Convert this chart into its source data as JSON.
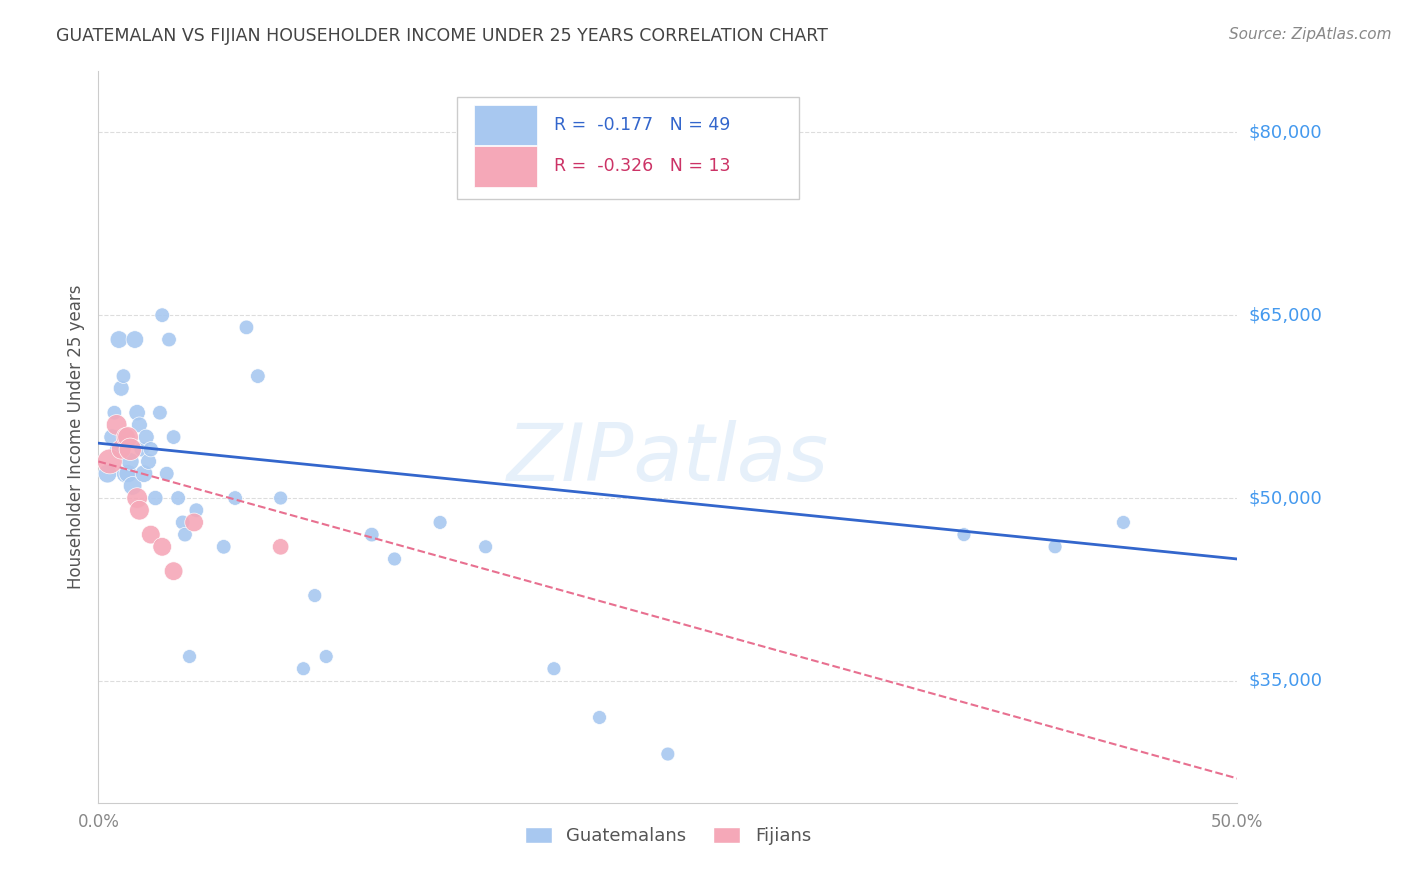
{
  "title": "GUATEMALAN VS FIJIAN HOUSEHOLDER INCOME UNDER 25 YEARS CORRELATION CHART",
  "source": "Source: ZipAtlas.com",
  "ylabel": "Householder Income Under 25 years",
  "xlim": [
    0.0,
    0.5
  ],
  "ylim": [
    25000,
    85000
  ],
  "yticks": [
    35000,
    50000,
    65000,
    80000
  ],
  "ytick_labels": [
    "$35,000",
    "$50,000",
    "$65,000",
    "$80,000"
  ],
  "guatemalan_color": "#a8c8f0",
  "fijian_color": "#f5a8b8",
  "trend_guatemalan_color": "#3366cc",
  "trend_fijian_color": "#e87090",
  "watermark": "ZIPatlas",
  "guatemalan_x": [
    0.004,
    0.006,
    0.007,
    0.008,
    0.009,
    0.01,
    0.011,
    0.012,
    0.013,
    0.014,
    0.015,
    0.016,
    0.017,
    0.018,
    0.019,
    0.02,
    0.021,
    0.022,
    0.023,
    0.025,
    0.027,
    0.028,
    0.03,
    0.031,
    0.033,
    0.035,
    0.037,
    0.038,
    0.04,
    0.043,
    0.055,
    0.06,
    0.065,
    0.07,
    0.08,
    0.09,
    0.095,
    0.1,
    0.12,
    0.13,
    0.15,
    0.17,
    0.2,
    0.22,
    0.25,
    0.38,
    0.42,
    0.45
  ],
  "guatemalan_y": [
    52000,
    55000,
    57000,
    54000,
    63000,
    59000,
    60000,
    52000,
    52000,
    53000,
    51000,
    63000,
    57000,
    56000,
    54000,
    52000,
    55000,
    53000,
    54000,
    50000,
    57000,
    65000,
    52000,
    63000,
    55000,
    50000,
    48000,
    47000,
    37000,
    49000,
    46000,
    50000,
    64000,
    60000,
    50000,
    36000,
    42000,
    37000,
    47000,
    45000,
    48000,
    46000,
    36000,
    32000,
    29000,
    47000,
    46000,
    48000
  ],
  "guatemalan_sizes": [
    180,
    140,
    110,
    100,
    160,
    130,
    110,
    180,
    170,
    160,
    180,
    160,
    140,
    130,
    120,
    160,
    130,
    130,
    120,
    120,
    110,
    110,
    110,
    110,
    110,
    110,
    110,
    110,
    100,
    110,
    110,
    110,
    110,
    110,
    100,
    100,
    100,
    100,
    110,
    100,
    100,
    100,
    100,
    100,
    100,
    100,
    100,
    100
  ],
  "fijian_x": [
    0.005,
    0.008,
    0.01,
    0.012,
    0.013,
    0.014,
    0.017,
    0.018,
    0.023,
    0.028,
    0.033,
    0.042,
    0.08
  ],
  "fijian_y": [
    53000,
    56000,
    54000,
    55000,
    55000,
    54000,
    50000,
    49000,
    47000,
    46000,
    44000,
    48000,
    46000
  ],
  "fijian_sizes": [
    320,
    220,
    200,
    190,
    220,
    260,
    220,
    200,
    180,
    180,
    180,
    180,
    140
  ],
  "trend_guat_x0": 0.0,
  "trend_guat_x1": 0.5,
  "trend_guat_y0": 54500,
  "trend_guat_y1": 45000,
  "trend_fij_x0": 0.0,
  "trend_fij_x1": 0.5,
  "trend_fij_y0": 53000,
  "trend_fij_y1": 27000,
  "background_color": "#ffffff",
  "title_color": "#444444",
  "source_color": "#888888",
  "ytick_color": "#4499ee",
  "grid_color": "#dddddd"
}
